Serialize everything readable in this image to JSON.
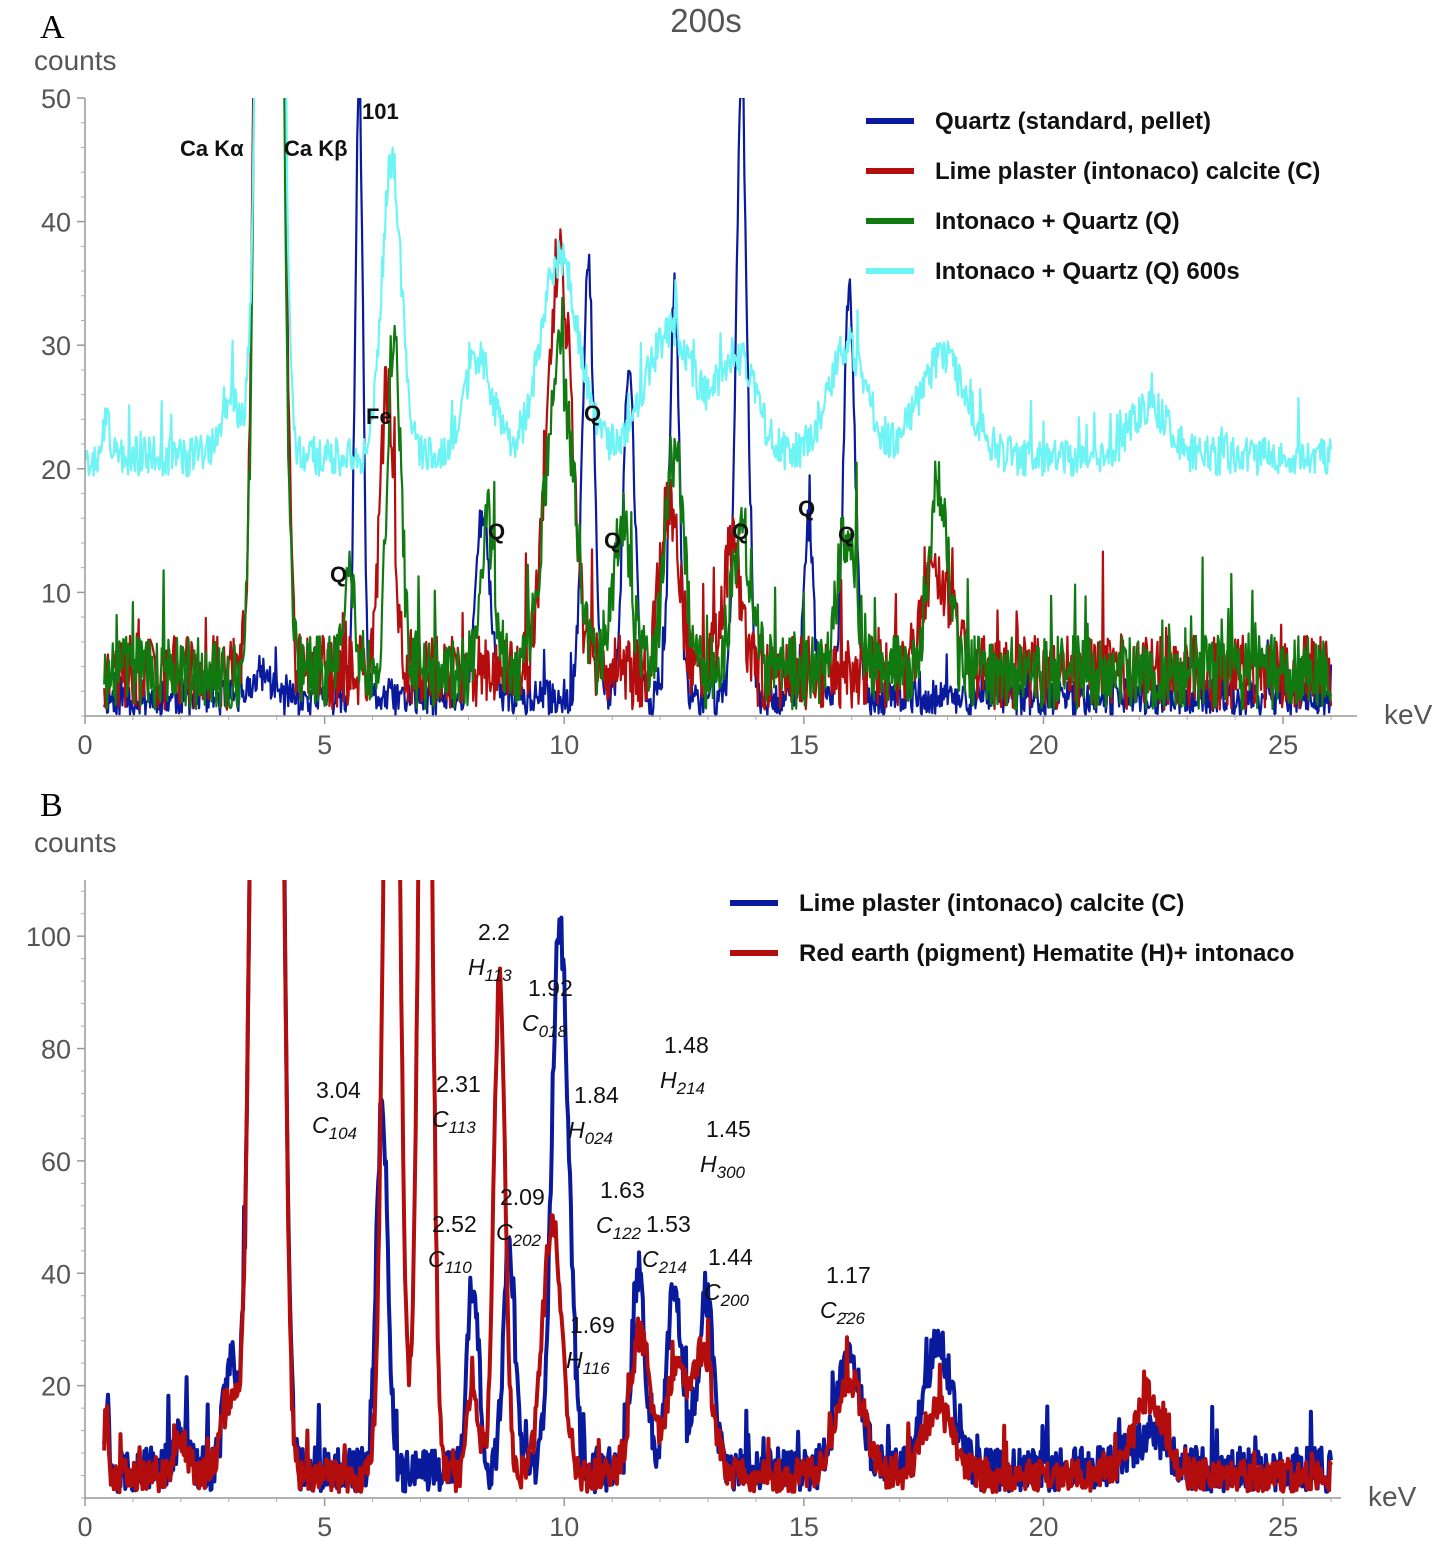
{
  "chart_data": [
    {
      "panel": "A",
      "type": "line",
      "title": "200s",
      "ylabel": "counts",
      "xlabel": "keV",
      "xlim": [
        0,
        26
      ],
      "ylim": [
        0,
        50
      ],
      "x_ticks": [
        0,
        5,
        10,
        15,
        20,
        25
      ],
      "y_ticks": [
        10,
        20,
        30,
        40,
        50
      ],
      "legend": "top-right",
      "series": [
        {
          "name": "Quartz (standard, pellet)",
          "color": "#0a1a9c",
          "baseline": 1.5,
          "noise": 1.5,
          "start": 0.4,
          "end": 26,
          "peaks": [
            [
              3.7,
              0.18,
              2
            ],
            [
              5.72,
              0.08,
              50
            ],
            [
              8.3,
              0.15,
              15
            ],
            [
              10.5,
              0.12,
              35
            ],
            [
              11.35,
              0.12,
              27
            ],
            [
              12.3,
              0.1,
              33
            ],
            [
              13.7,
              0.12,
              49
            ],
            [
              15.1,
              0.1,
              14
            ],
            [
              15.95,
              0.12,
              33
            ]
          ]
        },
        {
          "name": "Lime plaster (intonaco) calcite (C)",
          "color": "#b30d0d",
          "baseline": 3.5,
          "noise": 3,
          "start": 0.4,
          "end": 26,
          "peaks": [
            [
              3.7,
              0.14,
              120
            ],
            [
              4.05,
              0.12,
              90
            ],
            [
              6.3,
              0.14,
              23
            ],
            [
              9.9,
              0.25,
              34
            ],
            [
              12.2,
              0.2,
              14
            ],
            [
              13.5,
              0.2,
              10
            ],
            [
              17.8,
              0.3,
              8
            ]
          ]
        },
        {
          "name": "Intonaco + Quartz (Q)",
          "color": "#107a10",
          "baseline": 3.5,
          "noise": 3,
          "start": 0.4,
          "end": 26,
          "peaks": [
            [
              3.7,
              0.14,
              100
            ],
            [
              4.05,
              0.12,
              70
            ],
            [
              5.5,
              0.12,
              9
            ],
            [
              6.45,
              0.14,
              28
            ],
            [
              8.4,
              0.15,
              12
            ],
            [
              9.9,
              0.3,
              25
            ],
            [
              11.2,
              0.2,
              12
            ],
            [
              12.3,
              0.2,
              18
            ],
            [
              13.7,
              0.2,
              12
            ],
            [
              15.9,
              0.2,
              12
            ],
            [
              17.8,
              0.2,
              15
            ]
          ]
        },
        {
          "name": "Intonaco + Quartz (Q) 600s",
          "color": "#6ef4f4",
          "baseline": 21,
          "noise": 1.6,
          "start": 0,
          "end": 26,
          "peaks": [
            [
              0.45,
              0.05,
              4
            ],
            [
              3.1,
              0.25,
              4
            ],
            [
              3.75,
              0.15,
              80
            ],
            [
              4.05,
              0.12,
              60
            ],
            [
              6.4,
              0.2,
              24
            ],
            [
              8.2,
              0.3,
              8
            ],
            [
              9.9,
              0.4,
              16
            ],
            [
              12.2,
              0.5,
              10
            ],
            [
              13.6,
              0.4,
              8
            ],
            [
              15.9,
              0.4,
              9
            ],
            [
              17.9,
              0.5,
              8
            ],
            [
              22.2,
              0.4,
              4
            ]
          ]
        }
      ],
      "annotations": [
        "Ca Kα",
        "Ca Kβ",
        "101",
        "Fe",
        "Q",
        "Q",
        "Q",
        "Q",
        "Q",
        "Q",
        "Q"
      ]
    },
    {
      "panel": "B",
      "type": "line",
      "title": "",
      "ylabel": "counts",
      "xlabel": "keV",
      "xlim": [
        0,
        26
      ],
      "ylim": [
        0,
        110
      ],
      "x_ticks": [
        0,
        5,
        10,
        15,
        20,
        25
      ],
      "y_ticks": [
        20,
        40,
        60,
        80,
        100
      ],
      "legend": "top-right",
      "series": [
        {
          "name": "Lime plaster (intonaco) calcite (C)",
          "color": "#0a1a9c",
          "baseline": 5,
          "noise": 4,
          "start": 0.4,
          "end": 26,
          "peaks": [
            [
              0.45,
              0.04,
              14
            ],
            [
              2,
              0.15,
              6
            ],
            [
              3.05,
              0.15,
              20
            ],
            [
              3.65,
              0.16,
              260
            ],
            [
              4.0,
              0.14,
              200
            ],
            [
              6.2,
              0.12,
              65
            ],
            [
              8.1,
              0.12,
              33
            ],
            [
              8.85,
              0.12,
              40
            ],
            [
              9.85,
              0.14,
              76
            ],
            [
              10.05,
              0.14,
              45
            ],
            [
              11.55,
              0.14,
              35
            ],
            [
              12.3,
              0.15,
              32
            ],
            [
              12.95,
              0.15,
              32
            ],
            [
              15.95,
              0.25,
              20
            ],
            [
              17.8,
              0.3,
              22
            ],
            [
              22.2,
              0.4,
              6
            ]
          ]
        },
        {
          "name": "Red earth (pigment) Hematite (H)+ intonaco",
          "color": "#b30d0d",
          "baseline": 4,
          "noise": 3,
          "start": 0.4,
          "end": 26,
          "peaks": [
            [
              0.45,
              0.04,
              12
            ],
            [
              2,
              0.15,
              6
            ],
            [
              3.05,
              0.2,
              14
            ],
            [
              3.65,
              0.16,
              260
            ],
            [
              4.0,
              0.14,
              200
            ],
            [
              6.4,
              0.15,
              210
            ],
            [
              7.1,
              0.13,
              200
            ],
            [
              8.1,
              0.12,
              16
            ],
            [
              8.65,
              0.12,
              88
            ],
            [
              9.75,
              0.2,
              45
            ],
            [
              11.6,
              0.2,
              25
            ],
            [
              12.35,
              0.2,
              20
            ],
            [
              12.9,
              0.2,
              22
            ],
            [
              15.95,
              0.3,
              17
            ],
            [
              17.8,
              0.3,
              12
            ],
            [
              22.2,
              0.3,
              14
            ]
          ]
        }
      ],
      "annotations": [
        {
          "d": "2.2",
          "hkl": "H",
          "sub": "113"
        },
        {
          "d": "1.92",
          "hkl": "C",
          "sub": "018"
        },
        {
          "d": "1.48",
          "hkl": "H",
          "sub": "214"
        },
        {
          "d": "3.04",
          "hkl": "C",
          "sub": "104"
        },
        {
          "d": "2.31",
          "hkl": "C",
          "sub": "113"
        },
        {
          "d": "1.84",
          "hkl": "H",
          "sub": "024"
        },
        {
          "d": "1.45",
          "hkl": "H",
          "sub": "300"
        },
        {
          "d": "2.09",
          "hkl": "C",
          "sub": "202"
        },
        {
          "d": "1.63",
          "hkl": "C",
          "sub": "122"
        },
        {
          "d": "2.52",
          "hkl": "C",
          "sub": "110"
        },
        {
          "d": "1.53",
          "hkl": "C",
          "sub": "214"
        },
        {
          "d": "1.44",
          "hkl": "C",
          "sub": "200"
        },
        {
          "d": "1.17",
          "hkl": "C",
          "sub": "2̄26"
        },
        {
          "d": "1.69",
          "hkl": "H",
          "sub": "116"
        }
      ]
    }
  ],
  "panel_labels": {
    "a": "A",
    "b": "B"
  }
}
